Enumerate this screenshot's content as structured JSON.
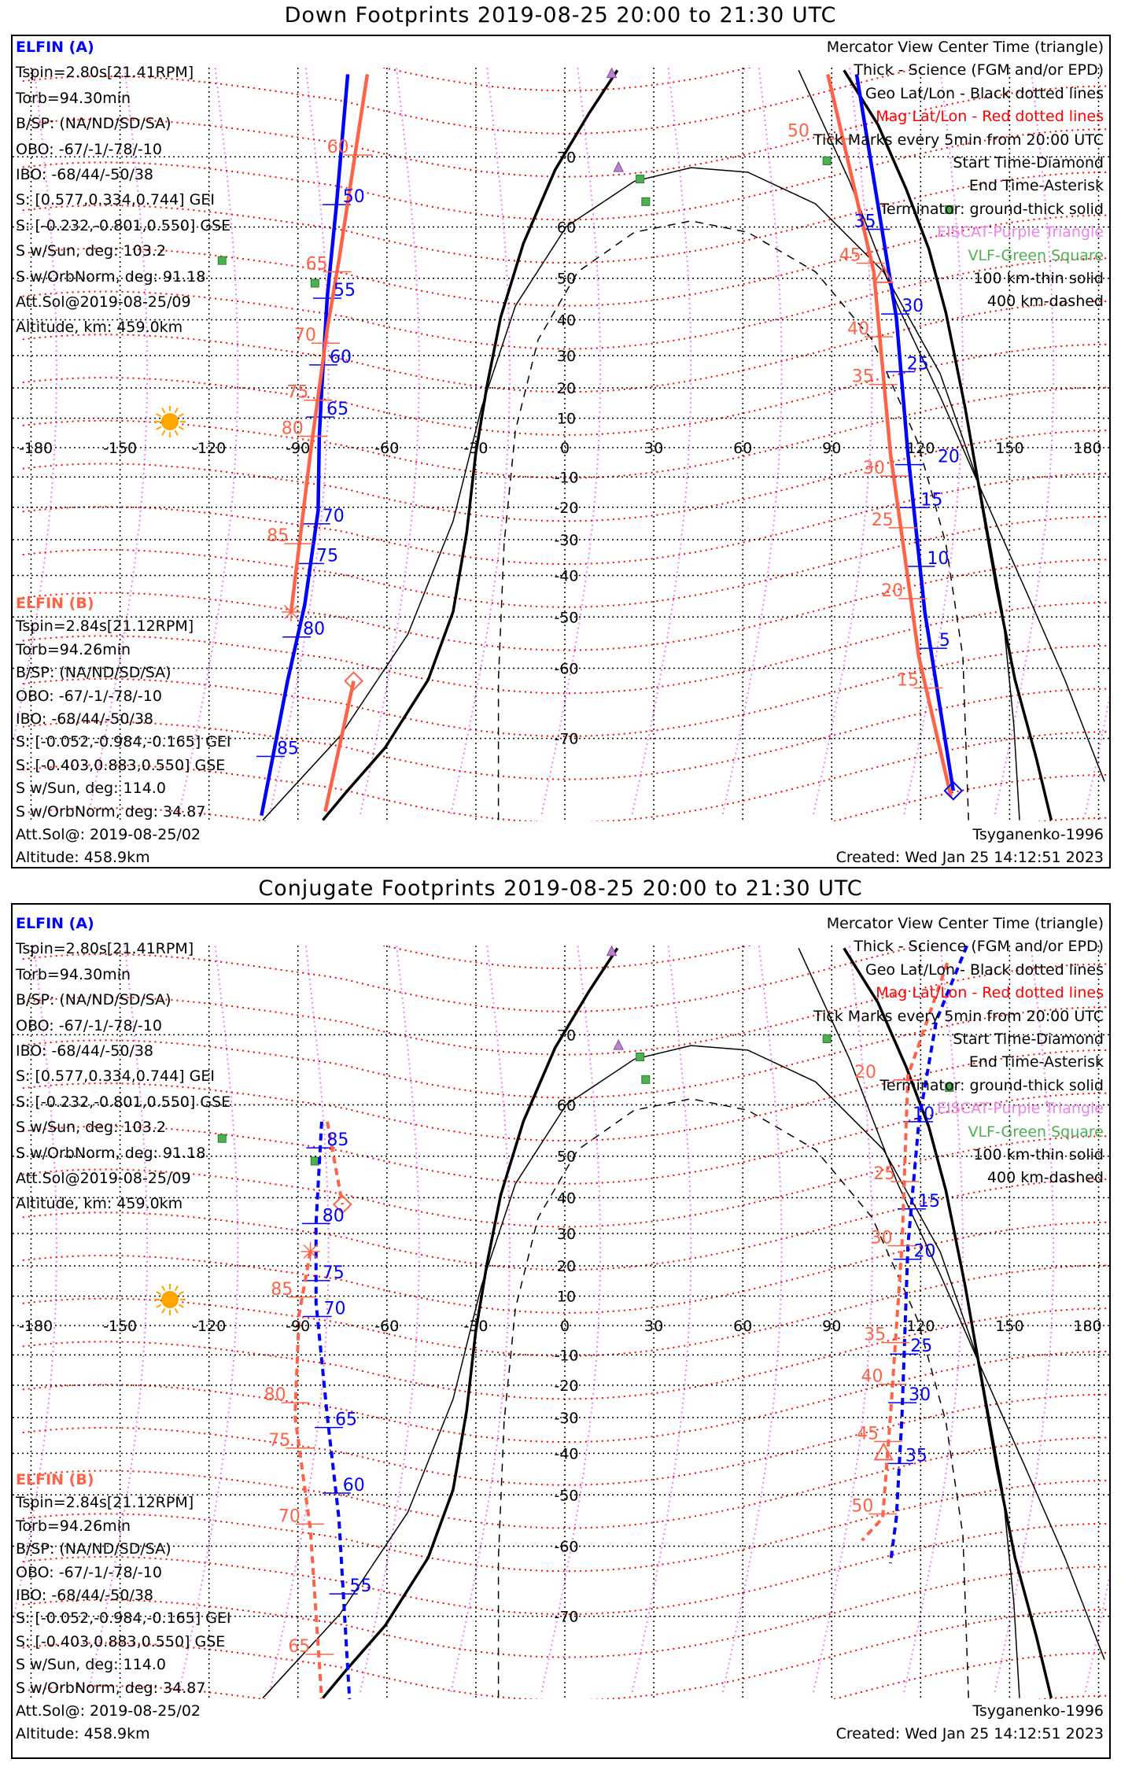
{
  "panels": [
    {
      "title": "Down Footprints 2019-08-25 20:00 to 21:30 UTC",
      "footer_model": "Tsyganenko-1996",
      "footer_created": "Created: Wed Jan 25 14:12:51 2023",
      "tracks": [
        {
          "name": "A-left",
          "sat": "A",
          "style": "solid",
          "points": [
            [
              -73.2,
              77.7
            ],
            [
              -77.0,
              63.6
            ],
            [
              -80.1,
              45.8
            ],
            [
              -82.0,
              19.3
            ],
            [
              -82.8,
              3.9
            ],
            [
              -83.2,
              -21.1
            ],
            [
              -87.7,
              -47.2
            ],
            [
              -93.5,
              -62.1
            ],
            [
              -102.3,
              -77.3
            ]
          ],
          "labels": [
            {
              "t": "50",
              "lat": 63.6
            },
            {
              "t": "55",
              "lat": 45.4
            },
            {
              "t": "60",
              "lat": 27.2
            },
            {
              "t": "65",
              "lat": 10.4
            },
            {
              "t": "70",
              "lat": -25.2
            },
            {
              "t": "75",
              "lat": -36.8
            },
            {
              "t": "80",
              "lat": -54.2
            },
            {
              "t": "85",
              "lat": -72
            }
          ]
        },
        {
          "name": "B-left-1",
          "sat": "B",
          "style": "solid",
          "points": [
            [
              -66.6,
              77.7
            ],
            [
              -76.2,
              53.7
            ],
            [
              -80.1,
              37.6
            ],
            [
              -85.8,
              -1.9
            ],
            [
              -92.3,
              -48.9
            ]
          ],
          "labels": [
            {
              "t": "60",
              "lat": 70.2
            },
            {
              "t": "65",
              "lat": 51.4
            },
            {
              "t": "70",
              "lat": 33.6
            },
            {
              "t": "75",
              "lat": 16.0
            },
            {
              "t": "80",
              "lat": 3.9
            },
            {
              "t": "85",
              "lat": -31.2
            }
          ]
        },
        {
          "name": "B-left-2",
          "sat": "B",
          "style": "solid",
          "points": [
            [
              -71.2,
              -62.1
            ],
            [
              -80.8,
              -77
            ]
          ],
          "labels": []
        },
        {
          "name": "A-right",
          "sat": "A",
          "style": "solid",
          "points": [
            [
              98.4,
              77.7
            ],
            [
              111.8,
              40.6
            ],
            [
              115.7,
              -1.9
            ],
            [
              121.4,
              -48.9
            ],
            [
              131.0,
              -75.3
            ]
          ],
          "labels": [
            {
              "t": "35",
              "lat": 59.6
            },
            {
              "t": "30",
              "lat": 41.5
            },
            {
              "t": "25",
              "lat": 25.1
            },
            {
              "t": "20",
              "lat": -5.8
            },
            {
              "t": "15",
              "lat": -20.1
            },
            {
              "t": "10",
              "lat": -37.6
            },
            {
              "t": "5",
              "lat": -56.4
            }
          ]
        },
        {
          "name": "B-right",
          "sat": "B",
          "style": "solid",
          "points": [
            [
              88.7,
              77.7
            ],
            [
              104.2,
              51.4
            ],
            [
              109.8,
              -1.9
            ],
            [
              119.4,
              -58
            ],
            [
              130.2,
              -75.8
            ]
          ],
          "labels": [
            {
              "t": "50",
              "lat": 72
            },
            {
              "t": "45",
              "lat": 53.2
            },
            {
              "t": "40",
              "lat": 35.4
            },
            {
              "t": "35",
              "lat": 21.1
            },
            {
              "t": "30",
              "lat": -9.7
            },
            {
              "t": "25",
              "lat": -26.4
            },
            {
              "t": "20",
              "lat": -45.8
            },
            {
              "t": "15",
              "lat": -63.2
            }
          ]
        }
      ],
      "markers": [
        {
          "type": "asterisk",
          "sat": "B",
          "lon": -92.3,
          "lat": -48.9
        },
        {
          "type": "diamond",
          "sat": "B",
          "lon": -71.2,
          "lat": -62.1
        },
        {
          "type": "diamond",
          "sat": "A",
          "lon": 131.0,
          "lat": -75.3
        },
        {
          "type": "triangle",
          "sat": "B",
          "lon": 107.5,
          "lat": 50.5
        }
      ]
    },
    {
      "title": "Conjugate Footprints 2019-08-25 20:00 to 21:30 UTC",
      "footer_model": "Tsyganenko-1996",
      "footer_created": "Created: Wed Jan 25 14:12:51 2023",
      "tracks": [
        {
          "name": "A-left",
          "sat": "A",
          "style": "dashed",
          "points": [
            [
              -82.0,
              57.0
            ],
            [
              -83.9,
              32.9
            ],
            [
              -83.9,
              7.7
            ],
            [
              -80.1,
              -29.6
            ],
            [
              -76.2,
              -54.8
            ],
            [
              -74.4,
              -69.1
            ],
            [
              -72.5,
              -78.1
            ]
          ],
          "labels": [
            {
              "t": "85",
              "lat": 51.8
            },
            {
              "t": "80",
              "lat": 32.9
            },
            {
              "t": "75",
              "lat": 15.2
            },
            {
              "t": "70",
              "lat": 3.1
            },
            {
              "t": "65",
              "lat": -32.9
            },
            {
              "t": "60",
              "lat": -49.6
            },
            {
              "t": "55",
              "lat": -67.2
            }
          ]
        },
        {
          "name": "B-left-1",
          "sat": "B",
          "style": "dashed",
          "points": [
            [
              -80.1,
              57.0
            ],
            [
              -75.0,
              38.2
            ]
          ],
          "labels": []
        },
        {
          "name": "B-left-2",
          "sat": "B",
          "style": "dashed",
          "points": [
            [
              -85.8,
              24.5
            ],
            [
              -89.6,
              3.9
            ],
            [
              -91.0,
              -29.6
            ],
            [
              -85.8,
              -57
            ],
            [
              -82.0,
              -77.7
            ]
          ],
          "labels": [
            {
              "t": "85",
              "lat": 9.7
            },
            {
              "t": "80",
              "lat": -25.5
            },
            {
              "t": "75",
              "lat": -38.6
            },
            {
              "t": "70",
              "lat": -56
            },
            {
              "t": "65",
              "lat": -74
            }
          ]
        },
        {
          "name": "A-right",
          "sat": "A",
          "style": "dashed",
          "points": [
            [
              138.6,
              79.6
            ],
            [
              125.3,
              71.6
            ],
            [
              119.4,
              57.0
            ],
            [
              115.7,
              26.3
            ],
            [
              113.7,
              -29.6
            ],
            [
              111.8,
              -54.8
            ],
            [
              109.8,
              -62.8
            ]
          ],
          "labels": [
            {
              "t": "10",
              "lat": 57
            },
            {
              "t": "15",
              "lat": 37
            },
            {
              "t": "20",
              "lat": 22.1
            },
            {
              "t": "25",
              "lat": -9.7
            },
            {
              "t": "30",
              "lat": -25.5
            },
            {
              "t": "35",
              "lat": -42.6
            }
          ]
        },
        {
          "name": "B-right",
          "sat": "B",
          "style": "dashed",
          "points": [
            [
              129,
              76.9
            ],
            [
              115.7,
              64.6
            ],
            [
              113.7,
              26.3
            ],
            [
              109.8,
              -29.6
            ],
            [
              107.2,
              -54.8
            ],
            [
              100.2,
              -59
            ]
          ],
          "labels": [
            {
              "t": "20",
              "lat": 64
            },
            {
              "t": "25",
              "lat": 44.1
            },
            {
              "t": "30",
              "lat": 26.3
            },
            {
              "t": "35",
              "lat": -5.8
            },
            {
              "t": "40",
              "lat": -19.7
            },
            {
              "t": "45",
              "lat": -36.8
            },
            {
              "t": "50",
              "lat": -54
            }
          ]
        }
      ],
      "markers": [
        {
          "type": "diamond",
          "sat": "B",
          "lon": -75.0,
          "lat": 38.2
        },
        {
          "type": "asterisk",
          "sat": "B",
          "lon": -85.8,
          "lat": 24.5
        },
        {
          "type": "triangle",
          "sat": "B",
          "lon": 107.5,
          "lat": -40
        }
      ]
    }
  ],
  "elfin_a": {
    "name": "ELFIN (A)",
    "lines": [
      "Tspin=2.80s[21.41RPM]",
      "Torb=94.30min",
      "B/SP: (NA/ND/SD/SA)",
      "OBO: -67/-1/-78/-10",
      "IBO: -68/44/-50/38",
      "S: [0.577,0.334,0.744] GEI",
      "S: [-0.232,-0.801,0.550] GSE",
      "S w/Sun, deg: 103.2",
      "S w/OrbNorm, deg: 91.18",
      "Att.Sol@2019-08-25/09",
      "Altitude, km: 459.0km"
    ]
  },
  "elfin_b": {
    "name": "ELFIN (B)",
    "lines": [
      "Tspin=2.84s[21.12RPM]",
      "Torb=94.26min",
      "B/SP: (NA/ND/SD/SA)",
      "OBO: -67/-1/-78/-10",
      "IBO: -68/44/-50/38",
      "S: [-0.052,-0.984,-0.165] GEI",
      "S: [-0.403,0.883,0.550] GSE",
      "S w/Sun, deg: 114.0",
      "S w/OrbNorm, deg: 34.87",
      "Att.Sol@: 2019-08-25/02",
      "Altitude: 458.9km"
    ]
  },
  "legend": [
    {
      "text": "Mercator View Center Time (triangle)",
      "color": "#000000"
    },
    {
      "text": "Thick - Science (FGM and/or EPD)",
      "color": "#000000"
    },
    {
      "text": "Geo Lat/Lon - Black dotted lines",
      "color": "#000000"
    },
    {
      "text": "Mag Lat/Lon - Red dotted lines",
      "color": "#ff0000"
    },
    {
      "text": "Tick Marks every 5min from 20:00 UTC",
      "color": "#000000"
    },
    {
      "text": "Start Time-Diamond",
      "color": "#000000"
    },
    {
      "text": "End Time-Asterisk",
      "color": "#000000"
    },
    {
      "text": "Terminator: ground-thick solid",
      "color": "#000000"
    },
    {
      "text": "EISCAT-Purple Triangle",
      "color": "#ee82ee"
    },
    {
      "text": "VLF-Green Square",
      "color": "#4caf50"
    },
    {
      "text": "100 km-thin solid",
      "color": "#000000"
    },
    {
      "text": "400 km-dashed",
      "color": "#000000"
    }
  ],
  "lon_ticks": [
    "-180",
    "-150",
    "-120",
    "-90",
    "-60",
    "-30",
    "0",
    "30",
    "60",
    "90",
    "120",
    "150",
    "180"
  ],
  "lat_ticks": [
    "70",
    "60",
    "50",
    "40",
    "30",
    "20",
    "10",
    "0",
    "-10",
    "-20",
    "-30",
    "-40",
    "-50",
    "-60",
    "-70"
  ],
  "colors": {
    "elfin_a": "#0000ff",
    "elfin_b": "#ff6347",
    "mag_grid": "#ff0000",
    "mag_lon": "#ee82ee",
    "geo_grid": "#000000",
    "coast": "#a0a0a0",
    "vlf": "#4caf50",
    "eiscat": "#c080d0",
    "sun": "#ffa500"
  }
}
